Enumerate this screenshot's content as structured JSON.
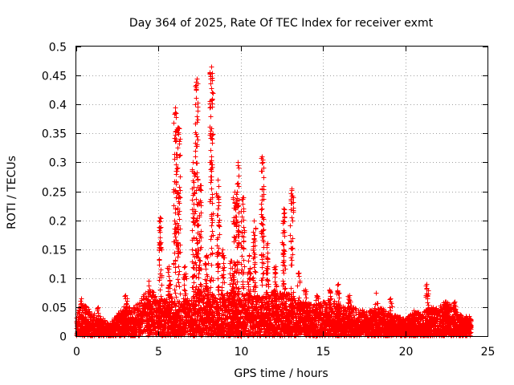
{
  "chart_data": {
    "type": "scatter",
    "title": "Day 364 of 2025, Rate Of TEC Index for receiver exmt",
    "xlabel": "GPS time / hours",
    "ylabel": "ROTI / TECUs",
    "xlim": [
      0,
      25
    ],
    "ylim": [
      0,
      0.5
    ],
    "grid": true,
    "marker": "+",
    "color": "#ff0000",
    "x_ticks": [
      0,
      5,
      10,
      15,
      20,
      25
    ],
    "y_ticks": [
      0,
      0.05,
      0.1,
      0.15,
      0.2,
      0.25,
      0.3,
      0.35,
      0.4,
      0.45,
      0.5
    ],
    "x_tick_labels": [
      "0",
      "5",
      "10",
      "15",
      "20",
      "25"
    ],
    "y_tick_labels": [
      "0",
      "0.05",
      "0.1",
      "0.15",
      "0.2",
      "0.25",
      "0.3",
      "0.35",
      "0.4",
      "0.45",
      "0.5"
    ],
    "baseline": [
      [
        0.0,
        0.04
      ],
      [
        0.3,
        0.06
      ],
      [
        1.0,
        0.04
      ],
      [
        1.5,
        0.035
      ],
      [
        2.0,
        0.02
      ],
      [
        2.5,
        0.04
      ],
      [
        3.0,
        0.055
      ],
      [
        3.5,
        0.05
      ],
      [
        4.0,
        0.07
      ],
      [
        4.5,
        0.085
      ],
      [
        5.0,
        0.06
      ],
      [
        5.5,
        0.08
      ],
      [
        6.0,
        0.06
      ],
      [
        6.5,
        0.065
      ],
      [
        7.0,
        0.07
      ],
      [
        7.5,
        0.08
      ],
      [
        8.0,
        0.08
      ],
      [
        8.5,
        0.07
      ],
      [
        9.0,
        0.075
      ],
      [
        9.5,
        0.08
      ],
      [
        10.0,
        0.075
      ],
      [
        10.5,
        0.075
      ],
      [
        11.0,
        0.07
      ],
      [
        11.5,
        0.07
      ],
      [
        12.0,
        0.08
      ],
      [
        12.5,
        0.075
      ],
      [
        13.0,
        0.075
      ],
      [
        13.5,
        0.06
      ],
      [
        14.0,
        0.06
      ],
      [
        14.5,
        0.055
      ],
      [
        15.0,
        0.06
      ],
      [
        15.5,
        0.065
      ],
      [
        16.0,
        0.055
      ],
      [
        16.5,
        0.05
      ],
      [
        17.0,
        0.05
      ],
      [
        17.5,
        0.045
      ],
      [
        18.0,
        0.045
      ],
      [
        18.5,
        0.05
      ],
      [
        19.0,
        0.04
      ],
      [
        19.5,
        0.035
      ],
      [
        20.0,
        0.03
      ],
      [
        20.5,
        0.045
      ],
      [
        21.0,
        0.04
      ],
      [
        21.5,
        0.05
      ],
      [
        22.0,
        0.05
      ],
      [
        22.5,
        0.06
      ],
      [
        23.0,
        0.05
      ],
      [
        23.5,
        0.035
      ],
      [
        24.0,
        0.035
      ]
    ],
    "spikes": [
      [
        0.3,
        0.065
      ],
      [
        1.3,
        0.05
      ],
      [
        3.0,
        0.07
      ],
      [
        4.4,
        0.095
      ],
      [
        5.1,
        0.205
      ],
      [
        5.6,
        0.12
      ],
      [
        6.0,
        0.395
      ],
      [
        6.2,
        0.36
      ],
      [
        6.6,
        0.12
      ],
      [
        7.1,
        0.3
      ],
      [
        7.3,
        0.445
      ],
      [
        7.5,
        0.26
      ],
      [
        7.9,
        0.14
      ],
      [
        8.2,
        0.465
      ],
      [
        8.6,
        0.27
      ],
      [
        8.9,
        0.15
      ],
      [
        9.4,
        0.13
      ],
      [
        9.6,
        0.25
      ],
      [
        9.8,
        0.3
      ],
      [
        10.1,
        0.24
      ],
      [
        10.5,
        0.14
      ],
      [
        10.8,
        0.2
      ],
      [
        11.3,
        0.31
      ],
      [
        11.6,
        0.16
      ],
      [
        12.1,
        0.12
      ],
      [
        12.6,
        0.22
      ],
      [
        13.1,
        0.255
      ],
      [
        13.5,
        0.11
      ],
      [
        13.9,
        0.08
      ],
      [
        14.6,
        0.07
      ],
      [
        15.4,
        0.08
      ],
      [
        15.9,
        0.09
      ],
      [
        16.6,
        0.07
      ],
      [
        18.2,
        0.075
      ],
      [
        19.1,
        0.065
      ],
      [
        21.3,
        0.09
      ],
      [
        22.4,
        0.06
      ],
      [
        23.0,
        0.06
      ]
    ]
  }
}
